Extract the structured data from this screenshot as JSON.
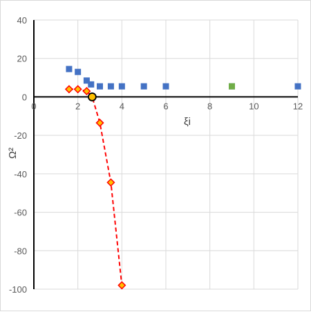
{
  "chart_data": {
    "type": "scatter",
    "xlabel": "ξi",
    "ylabel": "Ω²",
    "xlim": [
      0,
      12
    ],
    "ylim": [
      -100,
      40
    ],
    "x_ticks": [
      0,
      2,
      4,
      6,
      8,
      10,
      12
    ],
    "y_ticks": [
      40,
      20,
      0,
      -20,
      -40,
      -60,
      -80,
      -100
    ],
    "grid": true,
    "legend": "none",
    "series": [
      {
        "marker": "square",
        "color": "#4472c4",
        "line": "none",
        "points": [
          {
            "x": 1.6,
            "y": 14.5
          },
          {
            "x": 2.0,
            "y": 13.0
          },
          {
            "x": 2.4,
            "y": 8.5
          },
          {
            "x": 2.6,
            "y": 6.5
          },
          {
            "x": 3.0,
            "y": 5.5
          },
          {
            "x": 3.5,
            "y": 5.5
          },
          {
            "x": 4.0,
            "y": 5.5
          },
          {
            "x": 5.0,
            "y": 5.5
          },
          {
            "x": 6.0,
            "y": 5.5
          },
          {
            "x": 9.0,
            "y": 5.5
          },
          {
            "x": 12.0,
            "y": 5.5
          }
        ]
      },
      {
        "marker": "diamond",
        "color": "#ffc000",
        "edge_color": "#ff0000",
        "line": "dashed",
        "line_color": "#ff0000",
        "points": [
          {
            "x": 1.6,
            "y": 4.0
          },
          {
            "x": 2.0,
            "y": 4.0
          },
          {
            "x": 2.4,
            "y": 3.0
          },
          {
            "x": 2.65,
            "y": 0.0
          },
          {
            "x": 3.0,
            "y": -13.5
          },
          {
            "x": 3.5,
            "y": -44.5
          },
          {
            "x": 4.0,
            "y": -98.0
          }
        ]
      }
    ],
    "annotations": [
      {
        "marker": "circle",
        "color": "#ffc000",
        "edge_color": "#000000",
        "x": 2.65,
        "y": 0.0
      },
      {
        "marker": "square",
        "color": "#70ad47",
        "x": 9.0,
        "y": 5.5
      }
    ]
  }
}
